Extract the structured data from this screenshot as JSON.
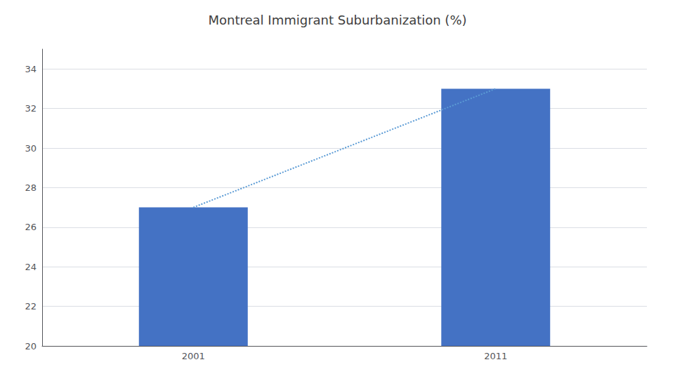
{
  "chart_data": {
    "type": "bar",
    "title": "Montreal Immigrant Suburbanization (%)",
    "categories": [
      "2001",
      "2011"
    ],
    "series": [
      {
        "type": "bar",
        "color": "#4472C4",
        "values": [
          27,
          33
        ]
      },
      {
        "type": "line",
        "color": "#5B9BD5",
        "line_style": "dotted",
        "values": [
          27,
          33
        ]
      }
    ],
    "ylim": [
      20,
      35
    ],
    "yticks": [
      20,
      22,
      24,
      26,
      28,
      30,
      32,
      34
    ],
    "grid": true
  }
}
